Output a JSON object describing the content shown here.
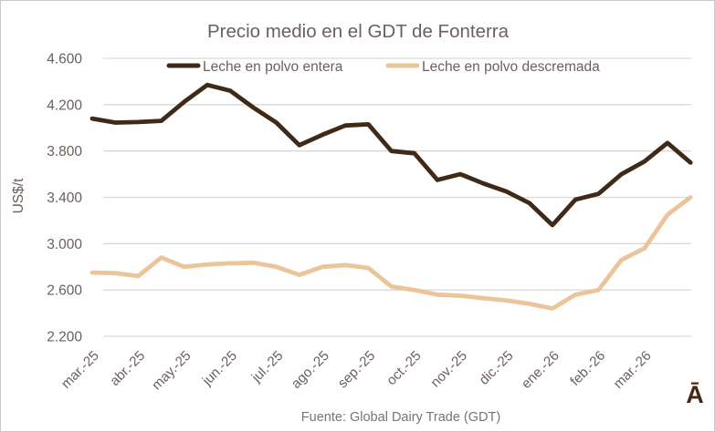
{
  "chart_data": {
    "type": "line",
    "title": "Precio medio en el GDT de Fonterra",
    "ylabel": "US$/t",
    "xlabel": "",
    "source": "Fuente: Global Dairy Trade (GDT)",
    "corner_artifact": "Ā",
    "grid": true,
    "legend_position": "top",
    "ylim": [
      2200,
      4600
    ],
    "y_ticks": [
      {
        "label": "4.600",
        "value": 4600
      },
      {
        "label": "4.200",
        "value": 4200
      },
      {
        "label": "3.800",
        "value": 3800
      },
      {
        "label": "3.400",
        "value": 3400
      },
      {
        "label": "3.000",
        "value": 3000
      },
      {
        "label": "2.600",
        "value": 2600
      },
      {
        "label": "2.200",
        "value": 2200
      }
    ],
    "x_tick_labels": [
      "mar.-25",
      "abr.-25",
      "may.-25",
      "jun.-25",
      "jul.-25",
      "ago.-25",
      "sep.-25",
      "oct.-25",
      "nov.-25",
      "dic.-25",
      "ene.-26",
      "feb.-26",
      "mar.-26"
    ],
    "points_per_tick": 2,
    "series": [
      {
        "name": "Leche en polvo entera",
        "color": "#3f2a17",
        "values": [
          4080,
          4045,
          4050,
          4060,
          4225,
          4370,
          4320,
          4175,
          4045,
          3850,
          3940,
          4020,
          4030,
          3800,
          3780,
          3550,
          3600,
          3520,
          3450,
          3350,
          3160,
          3380,
          3430,
          3600,
          3710,
          3870,
          3700
        ]
      },
      {
        "name": "Leche en polvo descremada",
        "color": "#ecc49a",
        "values": [
          2750,
          2745,
          2720,
          2880,
          2800,
          2820,
          2830,
          2835,
          2800,
          2730,
          2800,
          2815,
          2790,
          2630,
          2600,
          2560,
          2550,
          2530,
          2510,
          2480,
          2440,
          2560,
          2600,
          2860,
          2960,
          3250,
          3400
        ]
      }
    ]
  },
  "colors": {
    "title_text": "#6c5f5f",
    "axis_text": "#6b5f5c",
    "gridline": "#d9d9d9",
    "source_text": "#7a7470",
    "artifact_text": "#46280f",
    "figure_border": "#c9c9c9",
    "background": "#ffffff"
  }
}
